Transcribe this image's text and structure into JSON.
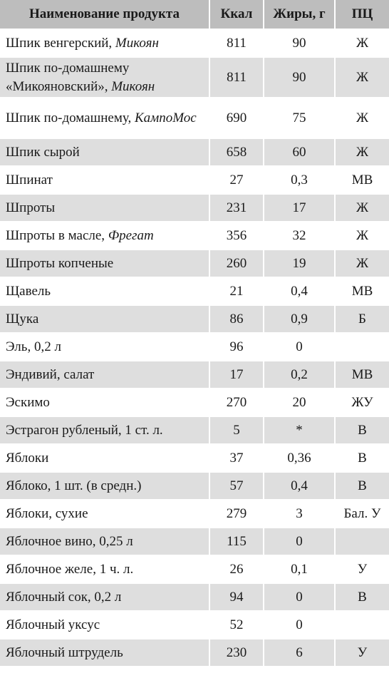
{
  "headers": {
    "name": "Наименование продукта",
    "kcal": "Ккал",
    "fat": "Жиры, г",
    "group": "ПЦ"
  },
  "rows": [
    {
      "name": "Шпик венгерский, ",
      "maker": "Микоян",
      "kcal": "811",
      "fat": "90",
      "group": "Ж"
    },
    {
      "name": "Шпик по-домашнему «Микояновский», ",
      "maker": "Микоян",
      "kcal": "811",
      "fat": "90",
      "group": "Ж"
    },
    {
      "name": "Шпик по-домашнему, ",
      "maker": "КампоМос",
      "kcal": "690",
      "fat": "75",
      "group": "Ж"
    },
    {
      "name": "Шпик сырой",
      "maker": "",
      "kcal": "658",
      "fat": "60",
      "group": "Ж"
    },
    {
      "name": "Шпинат",
      "maker": "",
      "kcal": "27",
      "fat": "0,3",
      "group": "МВ"
    },
    {
      "name": "Шпроты",
      "maker": "",
      "kcal": "231",
      "fat": "17",
      "group": "Ж"
    },
    {
      "name": "Шпроты в масле, ",
      "maker": "Фрегат",
      "kcal": "356",
      "fat": "32",
      "group": "Ж"
    },
    {
      "name": "Шпроты копченые",
      "maker": "",
      "kcal": "260",
      "fat": "19",
      "group": "Ж"
    },
    {
      "name": "Щавель",
      "maker": "",
      "kcal": "21",
      "fat": "0,4",
      "group": "МВ"
    },
    {
      "name": "Щука",
      "maker": "",
      "kcal": "86",
      "fat": "0,9",
      "group": "Б"
    },
    {
      "name": "Эль, 0,2 л",
      "maker": "",
      "kcal": "96",
      "fat": "0",
      "group": ""
    },
    {
      "name": "Эндивий, салат",
      "maker": "",
      "kcal": "17",
      "fat": "0,2",
      "group": "МВ"
    },
    {
      "name": "Эскимо",
      "maker": "",
      "kcal": "270",
      "fat": "20",
      "group": "ЖУ"
    },
    {
      "name": "Эстрагон рубленый, 1 ст. л.",
      "maker": "",
      "kcal": "5",
      "fat": "*",
      "group": "В"
    },
    {
      "name": "Яблоки",
      "maker": "",
      "kcal": "37",
      "fat": "0,36",
      "group": "В"
    },
    {
      "name": "Яблоко, 1 шт. (в средн.)",
      "maker": "",
      "kcal": "57",
      "fat": "0,4",
      "group": "В"
    },
    {
      "name": "Яблоки, сухие",
      "maker": "",
      "kcal": "279",
      "fat": "3",
      "group": "Бал. У"
    },
    {
      "name": "Яблочное вино, 0,25 л",
      "maker": "",
      "kcal": "115",
      "fat": "0",
      "group": ""
    },
    {
      "name": "Яблочное желе, 1 ч. л.",
      "maker": "",
      "kcal": "26",
      "fat": "0,1",
      "group": "У"
    },
    {
      "name": "Яблочный сок, 0,2 л",
      "maker": "",
      "kcal": "94",
      "fat": "0",
      "group": "В"
    },
    {
      "name": "Яблочный уксус",
      "maker": "",
      "kcal": "52",
      "fat": "0",
      "group": ""
    },
    {
      "name": "Яблочный штрудель",
      "maker": "",
      "kcal": "230",
      "fat": "6",
      "group": "У"
    }
  ]
}
